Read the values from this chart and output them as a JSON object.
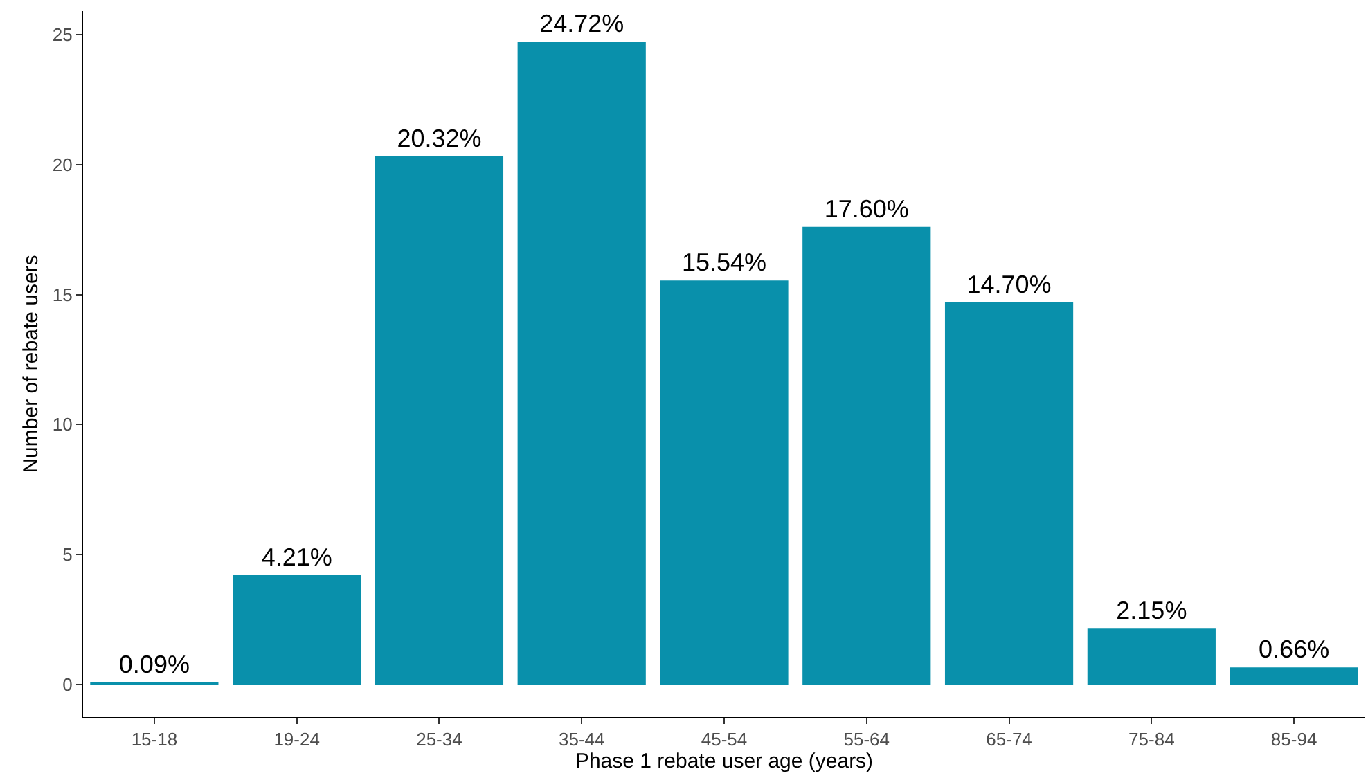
{
  "chart_data": {
    "type": "bar",
    "xlabel": "Phase 1 rebate user age (years)",
    "ylabel": "Number of rebate users",
    "categories": [
      "15-18",
      "19-24",
      "25-34",
      "35-44",
      "45-54",
      "55-64",
      "65-74",
      "75-84",
      "85-94"
    ],
    "values": [
      0.09,
      4.21,
      20.32,
      24.72,
      15.54,
      17.6,
      14.7,
      2.15,
      0.66
    ],
    "value_labels": [
      "0.09%",
      "4.21%",
      "20.32%",
      "24.72%",
      "15.54%",
      "17.60%",
      "14.70%",
      "2.15%",
      "0.66%"
    ],
    "color": "#0990ab",
    "ylim": [
      -1.25,
      25.9
    ],
    "yticks": [
      0,
      5,
      10,
      15,
      20,
      25
    ]
  }
}
